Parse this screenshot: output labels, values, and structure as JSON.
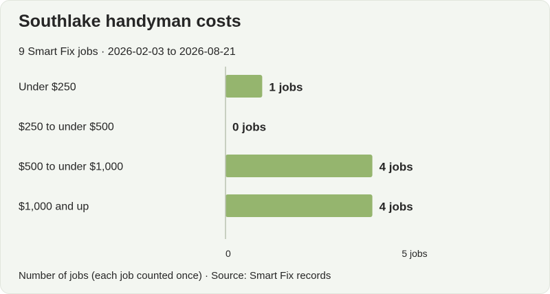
{
  "title": "Southlake handyman costs",
  "subtitle": "9 Smart Fix jobs · 2026-02-03 to 2026-08-21",
  "footer": "Number of jobs (each job counted once) · Source: Smart Fix records",
  "colors": {
    "bar": "#95b56e",
    "axis": "#b9c2b1",
    "background": "#f3f6f1"
  },
  "chart_data": {
    "type": "bar",
    "orientation": "horizontal",
    "categories": [
      "Under $250",
      "$250 to under $500",
      "$500 to under $1,000",
      "$1,000 and up"
    ],
    "values": [
      1,
      0,
      4,
      4
    ],
    "value_labels": [
      "1 jobs",
      "0 jobs",
      "4 jobs",
      "4 jobs"
    ],
    "xlim": [
      0,
      5
    ],
    "x_ticks": [
      "0",
      "5 jobs"
    ],
    "grid": false
  }
}
